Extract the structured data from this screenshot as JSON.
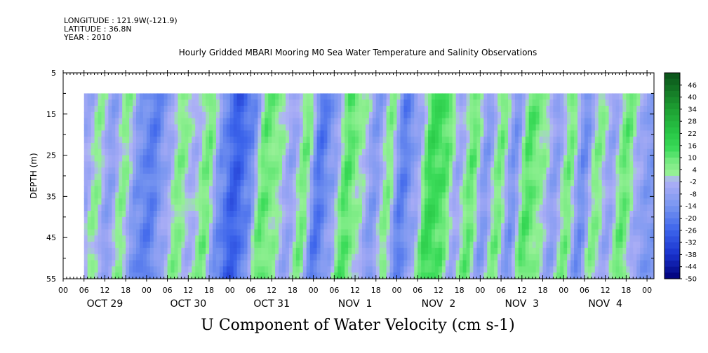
{
  "header": {
    "longitude": "LONGITUDE : 121.9W(-121.9)",
    "latitude": "LATITUDE : 36.8N",
    "year": "YEAR : 2010"
  },
  "chart_data": {
    "type": "heatmap",
    "title": "Hourly Gridded MBARI Mooring M0 Sea Water Temperature and Salinity Observations",
    "xlabel": "U Component of Water Velocity (cm s-1)",
    "ylabel": "DEPTH (m)",
    "ylim": [
      5,
      55
    ],
    "y_inverted": true,
    "y_ticks": [
      5,
      15,
      25,
      35,
      45,
      55
    ],
    "data_depth_range": [
      10,
      55
    ],
    "x_hour_labels": [
      "00",
      "06",
      "12",
      "18",
      "00",
      "06",
      "12",
      "18",
      "00",
      "06",
      "12",
      "18",
      "00",
      "06",
      "12",
      "18",
      "00",
      "06",
      "12",
      "18",
      "00",
      "06",
      "12",
      "18",
      "00",
      "06",
      "12",
      "18",
      "00"
    ],
    "x_day_labels": [
      "OCT 29",
      "OCT 30",
      "OCT 31",
      "NOV  1",
      "NOV  2",
      "NOV  3",
      "NOV  4"
    ],
    "x_range_hours": [
      0,
      170
    ],
    "data_start_hour": 6,
    "colorbar": {
      "labels": [
        "46",
        "40",
        "34",
        "28",
        "22",
        "16",
        "10",
        "4",
        "-2",
        "-8",
        "-14",
        "-20",
        "-26",
        "-32",
        "-38",
        "-44",
        "-50"
      ],
      "range": [
        -50,
        52
      ]
    },
    "velocity_bands": [
      {
        "hour": 6,
        "value": -6
      },
      {
        "hour": 9,
        "value": 4
      },
      {
        "hour": 13,
        "value": -10
      },
      {
        "hour": 17,
        "value": 5
      },
      {
        "hour": 21,
        "value": -14
      },
      {
        "hour": 25,
        "value": -20
      },
      {
        "hour": 29,
        "value": -8
      },
      {
        "hour": 33,
        "value": 6
      },
      {
        "hour": 37,
        "value": -4
      },
      {
        "hour": 41,
        "value": 8
      },
      {
        "hour": 45,
        "value": -16
      },
      {
        "hour": 49,
        "value": -28
      },
      {
        "hour": 53,
        "value": -18
      },
      {
        "hour": 57,
        "value": 10
      },
      {
        "hour": 61,
        "value": 4
      },
      {
        "hour": 65,
        "value": -8
      },
      {
        "hour": 69,
        "value": 8
      },
      {
        "hour": 73,
        "value": -22
      },
      {
        "hour": 77,
        "value": -10
      },
      {
        "hour": 81,
        "value": 12
      },
      {
        "hour": 85,
        "value": 2
      },
      {
        "hour": 89,
        "value": -12
      },
      {
        "hour": 93,
        "value": 6
      },
      {
        "hour": 97,
        "value": -20
      },
      {
        "hour": 101,
        "value": -8
      },
      {
        "hour": 105,
        "value": 16
      },
      {
        "hour": 109,
        "value": 12
      },
      {
        "hour": 113,
        "value": -6
      },
      {
        "hour": 117,
        "value": 10
      },
      {
        "hour": 121,
        "value": -12
      },
      {
        "hour": 125,
        "value": 8
      },
      {
        "hour": 129,
        "value": -14
      },
      {
        "hour": 133,
        "value": 12
      },
      {
        "hour": 137,
        "value": 4
      },
      {
        "hour": 141,
        "value": -10
      },
      {
        "hour": 145,
        "value": 8
      },
      {
        "hour": 149,
        "value": -16
      },
      {
        "hour": 153,
        "value": 6
      },
      {
        "hour": 157,
        "value": -8
      },
      {
        "hour": 161,
        "value": 10
      },
      {
        "hour": 165,
        "value": -6
      },
      {
        "hour": 168,
        "value": -12
      }
    ]
  }
}
